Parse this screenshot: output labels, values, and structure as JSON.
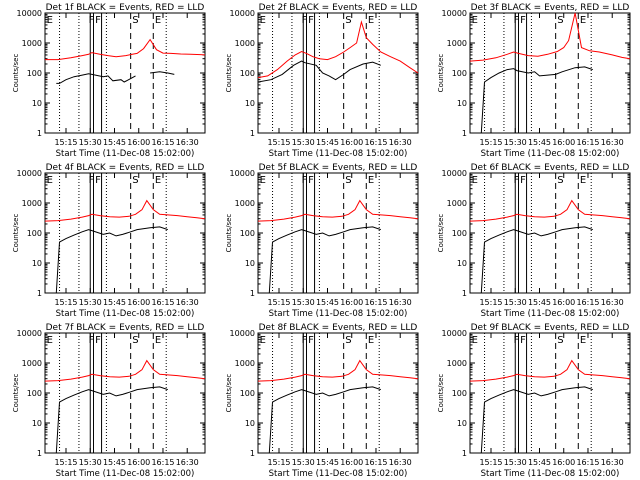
{
  "figure": {
    "x_axis_title": "Start Time (11-Dec-08 15:02:00)",
    "y_axis_title": "Counts/sec",
    "y_tick_labels": [
      "1",
      "10",
      "100",
      "1000",
      "10000"
    ],
    "x_tick_labels": [
      "15:15",
      "15:30",
      "15:45",
      "16:00",
      "16:15",
      "16:30"
    ],
    "markers": {
      "E_label": "E",
      "F_label": "F",
      "S_label": "S"
    },
    "colors": {
      "events": "#000000",
      "lld": "#ff0000",
      "axes": "#000000"
    }
  },
  "chart_data": [
    {
      "type": "line",
      "title": "Det 1f BLACK = Events, RED = LLD",
      "yscale": "log",
      "ylim": [
        1,
        10000
      ],
      "xlim": [
        "15:02",
        "16:41"
      ],
      "xlabel": "Start Time (11-Dec-08 15:02:00)",
      "ylabel": "Counts/sec",
      "series": [
        {
          "name": "Events",
          "color": "black",
          "x": [
            "15:09",
            "15:11",
            "15:15",
            "15:20",
            "15:25",
            "15:29",
            "15:31",
            "15:38",
            "15:41",
            "15:44",
            "15:49",
            "15:51",
            "15:55",
            "15:58",
            "16:00",
            "16:07",
            "16:13",
            "16:18",
            "16:22"
          ],
          "y": [
            45,
            45,
            60,
            75,
            85,
            95,
            90,
            75,
            80,
            55,
            60,
            50,
            65,
            80,
            null,
            100,
            110,
            100,
            90
          ]
        },
        {
          "name": "LLD",
          "color": "red",
          "x": [
            "15:02",
            "15:10",
            "15:18",
            "15:25",
            "15:29",
            "15:31",
            "15:36",
            "15:41",
            "15:46",
            "15:52",
            "15:56",
            "15:59",
            "16:03",
            "16:07",
            "16:11",
            "16:15",
            "16:20",
            "16:26",
            "16:32",
            "16:38",
            "16:41"
          ],
          "y": [
            280,
            280,
            320,
            380,
            420,
            480,
            420,
            380,
            350,
            380,
            420,
            450,
            650,
            1300,
            600,
            460,
            450,
            430,
            420,
            410,
            400
          ]
        }
      ]
    },
    {
      "type": "line",
      "title": "Det 2f BLACK = Events, RED = LLD",
      "yscale": "log",
      "ylim": [
        1,
        10000
      ],
      "xlim": [
        "15:02",
        "16:41"
      ],
      "xlabel": "Start Time (11-Dec-08 15:02:00)",
      "ylabel": "Counts/sec",
      "series": [
        {
          "name": "Events",
          "color": "black",
          "x": [
            "15:02",
            "15:10",
            "15:17",
            "15:24",
            "15:29",
            "15:31",
            "15:38",
            "15:42",
            "15:46",
            "15:50",
            "15:55",
            "15:59",
            "16:07",
            "16:13",
            "16:18"
          ],
          "y": [
            50,
            60,
            90,
            180,
            250,
            220,
            180,
            100,
            80,
            60,
            90,
            130,
            200,
            230,
            180
          ]
        },
        {
          "name": "LLD",
          "color": "red",
          "x": [
            "15:02",
            "15:08",
            "15:14",
            "15:20",
            "15:25",
            "15:29",
            "15:32",
            "15:36",
            "15:40",
            "15:45",
            "15:50",
            "15:55",
            "15:59",
            "16:03",
            "16:06",
            "16:09",
            "16:13",
            "16:18",
            "16:24",
            "16:30",
            "16:36",
            "16:41"
          ],
          "y": [
            70,
            80,
            130,
            250,
            400,
            520,
            450,
            350,
            300,
            280,
            350,
            500,
            700,
            1000,
            5000,
            1500,
            900,
            500,
            350,
            250,
            150,
            100
          ]
        }
      ]
    },
    {
      "type": "line",
      "title": "Det 3f BLACK = Events, RED = LLD",
      "yscale": "log",
      "ylim": [
        1,
        10000
      ],
      "xlim": [
        "15:02",
        "16:41"
      ],
      "xlabel": "Start Time (11-Dec-08 15:02:00)",
      "ylabel": "Counts/sec",
      "series": [
        {
          "name": "Events",
          "color": "black",
          "x": [
            "15:09",
            "15:11",
            "15:15",
            "15:20",
            "15:25",
            "15:29",
            "15:31",
            "15:38",
            "15:42",
            "15:45",
            "15:50",
            "15:55",
            "15:59",
            "16:07",
            "16:13",
            "16:18"
          ],
          "y": [
            1,
            50,
            70,
            100,
            130,
            140,
            120,
            100,
            110,
            80,
            85,
            90,
            110,
            150,
            160,
            130
          ]
        },
        {
          "name": "LLD",
          "color": "red",
          "x": [
            "15:02",
            "15:10",
            "15:18",
            "15:25",
            "15:29",
            "15:32",
            "15:38",
            "15:44",
            "15:50",
            "15:56",
            "16:00",
            "16:03",
            "16:07",
            "16:11",
            "16:16",
            "16:22",
            "16:30",
            "16:36",
            "16:41"
          ],
          "y": [
            250,
            270,
            320,
            420,
            500,
            450,
            380,
            360,
            420,
            520,
            700,
            1200,
            10000,
            700,
            550,
            500,
            400,
            330,
            300
          ]
        }
      ]
    },
    {
      "type": "line",
      "title": "Det 4f BLACK = Events, RED = LLD",
      "yscale": "log",
      "ylim": [
        1,
        10000
      ],
      "xlim": [
        "15:02",
        "16:41"
      ],
      "xlabel": "Start Time (11-Dec-08 15:02:00)",
      "ylabel": "Counts/sec",
      "series": [
        {
          "name": "Events",
          "color": "black",
          "x": [
            "15:09",
            "15:11",
            "15:15",
            "15:20",
            "15:25",
            "15:29",
            "15:31",
            "15:38",
            "15:42",
            "15:46",
            "15:50",
            "15:55",
            "15:59",
            "16:07",
            "16:13",
            "16:18"
          ],
          "y": [
            1,
            50,
            65,
            85,
            110,
            130,
            120,
            90,
            100,
            80,
            90,
            110,
            130,
            150,
            160,
            130
          ]
        },
        {
          "name": "LLD",
          "color": "red",
          "x": [
            "15:02",
            "15:10",
            "15:18",
            "15:25",
            "15:29",
            "15:31",
            "15:36",
            "15:42",
            "15:48",
            "15:54",
            "15:58",
            "16:02",
            "16:05",
            "16:09",
            "16:13",
            "16:18",
            "16:24",
            "16:30",
            "16:36",
            "16:41"
          ],
          "y": [
            250,
            260,
            290,
            340,
            380,
            420,
            380,
            350,
            340,
            360,
            420,
            600,
            1200,
            600,
            420,
            400,
            380,
            350,
            320,
            300
          ]
        }
      ]
    },
    {
      "type": "line",
      "title": "Det 5f BLACK = Events, RED = LLD",
      "yscale": "log",
      "ylim": [
        1,
        10000
      ],
      "xlim": [
        "15:02",
        "16:41"
      ],
      "xlabel": "Start Time (11-Dec-08 15:02:00)",
      "ylabel": "Counts/sec",
      "series": [
        {
          "name": "Events",
          "color": "black",
          "x": [
            "15:09",
            "15:11",
            "15:15",
            "15:20",
            "15:25",
            "15:29",
            "15:31",
            "15:38",
            "15:42",
            "15:46",
            "15:50",
            "15:55",
            "15:59",
            "16:07",
            "16:13",
            "16:18"
          ],
          "y": [
            1,
            50,
            65,
            85,
            110,
            130,
            120,
            90,
            100,
            80,
            90,
            110,
            130,
            150,
            160,
            130
          ]
        },
        {
          "name": "LLD",
          "color": "red",
          "x": [
            "15:02",
            "15:10",
            "15:18",
            "15:25",
            "15:29",
            "15:31",
            "15:36",
            "15:42",
            "15:48",
            "15:54",
            "15:58",
            "16:02",
            "16:05",
            "16:09",
            "16:13",
            "16:18",
            "16:24",
            "16:30",
            "16:36",
            "16:41"
          ],
          "y": [
            250,
            260,
            290,
            340,
            380,
            420,
            380,
            350,
            340,
            360,
            420,
            600,
            1200,
            600,
            420,
            400,
            380,
            350,
            320,
            300
          ]
        }
      ]
    },
    {
      "type": "line",
      "title": "Det 6f BLACK = Events, RED = LLD",
      "yscale": "log",
      "ylim": [
        1,
        10000
      ],
      "xlim": [
        "15:02",
        "16:41"
      ],
      "xlabel": "Start Time (11-Dec-08 15:02:00)",
      "ylabel": "Counts/sec",
      "series": [
        {
          "name": "Events",
          "color": "black",
          "x": [
            "15:09",
            "15:11",
            "15:15",
            "15:20",
            "15:25",
            "15:29",
            "15:31",
            "15:38",
            "15:42",
            "15:46",
            "15:50",
            "15:55",
            "15:59",
            "16:07",
            "16:13",
            "16:18"
          ],
          "y": [
            1,
            50,
            65,
            85,
            110,
            130,
            120,
            90,
            100,
            80,
            90,
            110,
            130,
            150,
            160,
            130
          ]
        },
        {
          "name": "LLD",
          "color": "red",
          "x": [
            "15:02",
            "15:10",
            "15:18",
            "15:25",
            "15:29",
            "15:31",
            "15:36",
            "15:42",
            "15:48",
            "15:54",
            "15:58",
            "16:02",
            "16:05",
            "16:09",
            "16:13",
            "16:18",
            "16:24",
            "16:30",
            "16:36",
            "16:41"
          ],
          "y": [
            250,
            260,
            290,
            340,
            380,
            420,
            380,
            350,
            340,
            360,
            420,
            600,
            1200,
            600,
            420,
            400,
            380,
            350,
            320,
            300
          ]
        }
      ]
    },
    {
      "type": "line",
      "title": "Det 7f BLACK = Events, RED = LLD",
      "yscale": "log",
      "ylim": [
        1,
        10000
      ],
      "xlim": [
        "15:02",
        "16:41"
      ],
      "xlabel": "Start Time (11-Dec-08 15:02:00)",
      "ylabel": "Counts/sec",
      "series": [
        {
          "name": "Events",
          "color": "black",
          "x": [
            "15:09",
            "15:11",
            "15:15",
            "15:20",
            "15:25",
            "15:29",
            "15:31",
            "15:38",
            "15:42",
            "15:46",
            "15:50",
            "15:55",
            "15:59",
            "16:07",
            "16:13",
            "16:18"
          ],
          "y": [
            1,
            50,
            65,
            85,
            110,
            130,
            120,
            90,
            100,
            80,
            90,
            110,
            130,
            150,
            160,
            130
          ]
        },
        {
          "name": "LLD",
          "color": "red",
          "x": [
            "15:02",
            "15:10",
            "15:18",
            "15:25",
            "15:29",
            "15:31",
            "15:36",
            "15:42",
            "15:48",
            "15:54",
            "15:58",
            "16:02",
            "16:05",
            "16:09",
            "16:13",
            "16:18",
            "16:24",
            "16:30",
            "16:36",
            "16:41"
          ],
          "y": [
            250,
            260,
            290,
            340,
            380,
            420,
            380,
            350,
            340,
            360,
            420,
            600,
            1200,
            600,
            420,
            400,
            380,
            350,
            320,
            300
          ]
        }
      ]
    },
    {
      "type": "line",
      "title": "Det 8f BLACK = Events, RED = LLD",
      "yscale": "log",
      "ylim": [
        1,
        10000
      ],
      "xlim": [
        "15:02",
        "16:41"
      ],
      "xlabel": "Start Time (11-Dec-08 15:02:00)",
      "ylabel": "Counts/sec",
      "series": [
        {
          "name": "Events",
          "color": "black",
          "x": [
            "15:09",
            "15:11",
            "15:15",
            "15:20",
            "15:25",
            "15:29",
            "15:31",
            "15:38",
            "15:42",
            "15:46",
            "15:50",
            "15:55",
            "15:59",
            "16:07",
            "16:13",
            "16:18"
          ],
          "y": [
            1,
            50,
            65,
            85,
            110,
            130,
            120,
            90,
            100,
            80,
            90,
            110,
            130,
            150,
            160,
            130
          ]
        },
        {
          "name": "LLD",
          "color": "red",
          "x": [
            "15:02",
            "15:10",
            "15:18",
            "15:25",
            "15:29",
            "15:31",
            "15:36",
            "15:42",
            "15:48",
            "15:54",
            "15:58",
            "16:02",
            "16:05",
            "16:09",
            "16:13",
            "16:18",
            "16:24",
            "16:30",
            "16:36",
            "16:41"
          ],
          "y": [
            250,
            260,
            290,
            340,
            380,
            420,
            380,
            350,
            340,
            360,
            420,
            600,
            1200,
            600,
            420,
            400,
            380,
            350,
            320,
            300
          ]
        }
      ]
    },
    {
      "type": "line",
      "title": "Det 9f BLACK = Events, RED = LLD",
      "yscale": "log",
      "ylim": [
        1,
        10000
      ],
      "xlim": [
        "15:02",
        "16:41"
      ],
      "xlabel": "Start Time (11-Dec-08 15:02:00)",
      "ylabel": "Counts/sec",
      "series": [
        {
          "name": "Events",
          "color": "black",
          "x": [
            "15:09",
            "15:11",
            "15:15",
            "15:20",
            "15:25",
            "15:29",
            "15:31",
            "15:38",
            "15:42",
            "15:46",
            "15:50",
            "15:55",
            "15:59",
            "16:07",
            "16:13",
            "16:18"
          ],
          "y": [
            1,
            50,
            65,
            85,
            110,
            130,
            120,
            90,
            100,
            80,
            90,
            110,
            130,
            150,
            160,
            130
          ]
        },
        {
          "name": "LLD",
          "color": "red",
          "x": [
            "15:02",
            "15:10",
            "15:18",
            "15:25",
            "15:29",
            "15:31",
            "15:36",
            "15:42",
            "15:48",
            "15:54",
            "15:58",
            "16:02",
            "16:05",
            "16:09",
            "16:13",
            "16:18",
            "16:24",
            "16:30",
            "16:36",
            "16:41"
          ],
          "y": [
            250,
            260,
            290,
            340,
            380,
            420,
            380,
            350,
            340,
            360,
            420,
            600,
            1200,
            600,
            420,
            400,
            380,
            350,
            320,
            300
          ]
        }
      ]
    }
  ]
}
